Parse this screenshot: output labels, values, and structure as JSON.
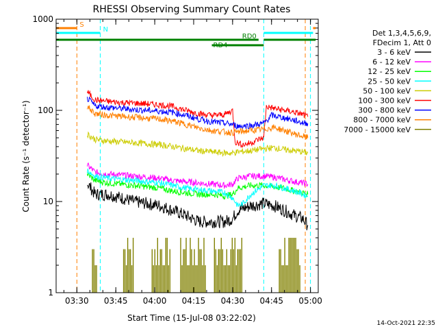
{
  "chart_data": {
    "type": "line",
    "title": "RHESSI Observing Summary Count Rates",
    "xlabel": "Start Time (15-Jul-08 03:22:02)",
    "ylabel": "Count Rate (s⁻¹ detector⁻¹)",
    "y_scale": "log",
    "ylim": [
      1,
      1000
    ],
    "xlim_minutes": [
      0,
      101
    ],
    "x_ticks": [
      {
        "label": "03:30",
        "minute": 8
      },
      {
        "label": "03:45",
        "minute": 23
      },
      {
        "label": "04:00",
        "minute": 38
      },
      {
        "label": "04:15",
        "minute": 53
      },
      {
        "label": "04:30",
        "minute": 68
      },
      {
        "label": "04:45",
        "minute": 83
      },
      {
        "label": "05:00",
        "minute": 98
      }
    ],
    "y_ticks": [
      {
        "label": "1",
        "value": 1
      },
      {
        "label": "10",
        "value": 10
      },
      {
        "label": "100",
        "value": 100
      },
      {
        "label": "1000",
        "value": 1000
      }
    ],
    "legend_header": [
      "Det 1,3,4,5,6,9,",
      "FDecim 1, Att 0"
    ],
    "legend_placement": "right",
    "series": [
      {
        "name": "3 - 6 keV",
        "color": "#000000",
        "points": [
          [
            12,
            16
          ],
          [
            15,
            12
          ],
          [
            20,
            12
          ],
          [
            25,
            11
          ],
          [
            30,
            10
          ],
          [
            35,
            9.5
          ],
          [
            40,
            9
          ],
          [
            45,
            8
          ],
          [
            50,
            7
          ],
          [
            55,
            6
          ],
          [
            60,
            6
          ],
          [
            65,
            6
          ],
          [
            68,
            6.5
          ],
          [
            70,
            8
          ],
          [
            75,
            9
          ],
          [
            80,
            9.5
          ],
          [
            84,
            9
          ],
          [
            88,
            8
          ],
          [
            92,
            7
          ],
          [
            95,
            6.5
          ],
          [
            97,
            5.5
          ]
        ]
      },
      {
        "name": "6 - 12 keV",
        "color": "#ff00ff",
        "points": [
          [
            12,
            25
          ],
          [
            15,
            21
          ],
          [
            20,
            20
          ],
          [
            25,
            19.5
          ],
          [
            30,
            19
          ],
          [
            35,
            18.5
          ],
          [
            40,
            18
          ],
          [
            45,
            17
          ],
          [
            50,
            16.5
          ],
          [
            55,
            16
          ],
          [
            60,
            15.5
          ],
          [
            65,
            15
          ],
          [
            68,
            15.5
          ],
          [
            70,
            18
          ],
          [
            75,
            19
          ],
          [
            80,
            19
          ],
          [
            84,
            18.5
          ],
          [
            88,
            17.5
          ],
          [
            92,
            16.5
          ],
          [
            95,
            16
          ],
          [
            97,
            15.5
          ]
        ]
      },
      {
        "name": "12 - 25 keV",
        "color": "#00ff00",
        "points": [
          [
            12,
            20
          ],
          [
            15,
            17
          ],
          [
            20,
            16
          ],
          [
            25,
            15.5
          ],
          [
            30,
            15
          ],
          [
            35,
            14.5
          ],
          [
            40,
            14
          ],
          [
            45,
            13
          ],
          [
            50,
            12.5
          ],
          [
            55,
            12
          ],
          [
            60,
            12
          ],
          [
            65,
            11.5
          ],
          [
            68,
            12
          ],
          [
            70,
            14
          ],
          [
            75,
            15
          ],
          [
            80,
            15
          ],
          [
            84,
            14.5
          ],
          [
            88,
            14
          ],
          [
            92,
            13
          ],
          [
            95,
            12.5
          ],
          [
            97,
            12
          ]
        ]
      },
      {
        "name": "25 - 50 keV",
        "color": "#00ffff",
        "points": [
          [
            12,
            22
          ],
          [
            15,
            19
          ],
          [
            20,
            18
          ],
          [
            25,
            17.5
          ],
          [
            30,
            17
          ],
          [
            35,
            16.5
          ],
          [
            40,
            16
          ],
          [
            45,
            15
          ],
          [
            50,
            14
          ],
          [
            55,
            13.5
          ],
          [
            60,
            13
          ],
          [
            65,
            12.5
          ],
          [
            68,
            11
          ],
          [
            70,
            9
          ],
          [
            72,
            9.5
          ],
          [
            75,
            12
          ],
          [
            80,
            15
          ],
          [
            84,
            15
          ],
          [
            88,
            14
          ],
          [
            92,
            13
          ],
          [
            95,
            12
          ],
          [
            97,
            11.5
          ]
        ]
      },
      {
        "name": "50 - 100 keV",
        "color": "#cccc00",
        "points": [
          [
            12,
            55
          ],
          [
            15,
            48
          ],
          [
            20,
            46
          ],
          [
            25,
            45
          ],
          [
            30,
            44
          ],
          [
            35,
            43
          ],
          [
            40,
            42
          ],
          [
            45,
            40
          ],
          [
            50,
            38
          ],
          [
            55,
            36
          ],
          [
            60,
            35
          ],
          [
            65,
            34
          ],
          [
            68,
            34
          ],
          [
            70,
            35
          ],
          [
            75,
            36
          ],
          [
            80,
            38
          ],
          [
            84,
            39
          ],
          [
            88,
            37
          ],
          [
            92,
            36
          ],
          [
            95,
            35
          ],
          [
            97,
            34
          ]
        ]
      },
      {
        "name": "100 - 300 keV",
        "color": "#ff0000",
        "points": [
          [
            12,
            160
          ],
          [
            15,
            130
          ],
          [
            20,
            125
          ],
          [
            25,
            122
          ],
          [
            30,
            120
          ],
          [
            35,
            118
          ],
          [
            40,
            115
          ],
          [
            45,
            110
          ],
          [
            50,
            100
          ],
          [
            55,
            92
          ],
          [
            60,
            88
          ],
          [
            65,
            90
          ],
          [
            68,
            100
          ],
          [
            69,
            45
          ],
          [
            72,
            42
          ],
          [
            75,
            44
          ],
          [
            78,
            48
          ],
          [
            80,
            50
          ],
          [
            81,
            110
          ],
          [
            84,
            105
          ],
          [
            88,
            100
          ],
          [
            92,
            95
          ],
          [
            95,
            90
          ],
          [
            97,
            85
          ]
        ]
      },
      {
        "name": "300 - 800 keV",
        "color": "#0000ff",
        "points": [
          [
            12,
            135
          ],
          [
            15,
            112
          ],
          [
            20,
            108
          ],
          [
            25,
            105
          ],
          [
            30,
            102
          ],
          [
            35,
            100
          ],
          [
            40,
            98
          ],
          [
            45,
            95
          ],
          [
            50,
            88
          ],
          [
            55,
            80
          ],
          [
            60,
            75
          ],
          [
            65,
            72
          ],
          [
            68,
            70
          ],
          [
            70,
            67
          ],
          [
            75,
            68
          ],
          [
            80,
            72
          ],
          [
            83,
            88
          ],
          [
            86,
            85
          ],
          [
            90,
            80
          ],
          [
            93,
            76
          ],
          [
            95,
            73
          ],
          [
            97,
            72
          ]
        ]
      },
      {
        "name": "800 - 7000 keV",
        "color": "#ff8000",
        "points": [
          [
            12,
            110
          ],
          [
            15,
            92
          ],
          [
            20,
            88
          ],
          [
            25,
            86
          ],
          [
            30,
            84
          ],
          [
            35,
            82
          ],
          [
            40,
            80
          ],
          [
            45,
            76
          ],
          [
            50,
            70
          ],
          [
            55,
            64
          ],
          [
            60,
            60
          ],
          [
            65,
            58
          ],
          [
            68,
            57
          ],
          [
            70,
            58
          ],
          [
            75,
            60
          ],
          [
            80,
            62
          ],
          [
            84,
            65
          ],
          [
            88,
            60
          ],
          [
            92,
            55
          ],
          [
            95,
            52
          ],
          [
            97,
            50
          ]
        ]
      },
      {
        "name": "7000 - 15000 keV",
        "color": "#808000",
        "points": []
      }
    ],
    "attenuator_bars": [
      [
        14,
        16
      ],
      [
        26,
        30
      ],
      [
        37,
        44
      ],
      [
        48,
        58
      ],
      [
        61,
        72
      ],
      [
        86,
        94
      ]
    ],
    "state_bars": [
      {
        "label": "S",
        "color": "#ff8000",
        "row": 1,
        "segments": [
          [
            0,
            8
          ],
          [
            99,
            100
          ]
        ]
      },
      {
        "label": "N",
        "color": "#00ffff",
        "row": 2,
        "segments": [
          [
            0,
            17
          ],
          [
            80,
            99
          ]
        ]
      },
      {
        "label": "RD0",
        "color": "#008000",
        "row": 3,
        "segments": [
          [
            0,
            78
          ],
          [
            80,
            100
          ]
        ]
      },
      {
        "label": "RD4",
        "color": "#008000",
        "row": 4,
        "segments": [
          [
            60,
            80
          ]
        ]
      }
    ],
    "vertical_markers": [
      {
        "minute": 8,
        "color": "#ff8000"
      },
      {
        "minute": 17,
        "color": "#00ffff"
      },
      {
        "minute": 80,
        "color": "#00ffff"
      },
      {
        "minute": 96,
        "color": "#ff8000"
      },
      {
        "minute": 98,
        "color": "#00ffff"
      }
    ],
    "grid": false
  },
  "footer": {
    "timestamp": "14-Oct-2021 22:35"
  }
}
